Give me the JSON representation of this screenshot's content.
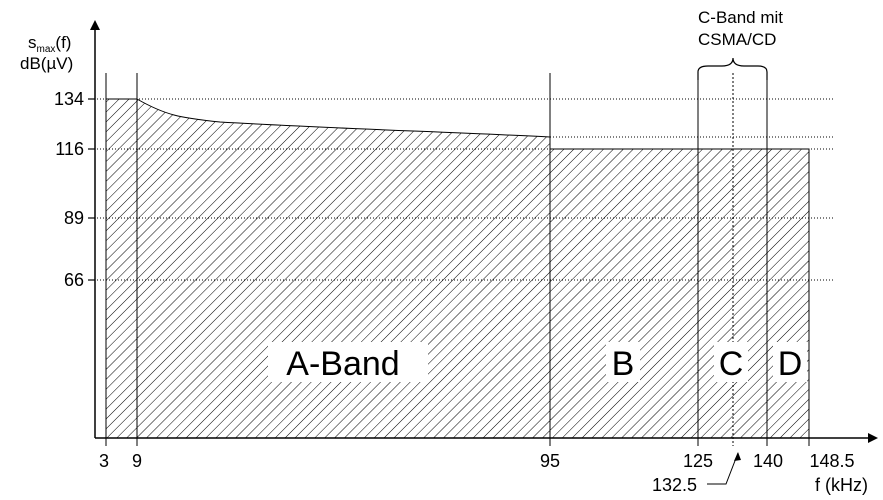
{
  "y_axis": {
    "label_main": "s",
    "label_sub": "max",
    "label_suffix": "(f)",
    "unit": "dB(µV)"
  },
  "x_axis": {
    "label": "f (kHz)"
  },
  "y_ticks": [
    "134",
    "116",
    "89",
    "66"
  ],
  "x_ticks": [
    "3",
    "9",
    "95",
    "125",
    "140",
    "148.5"
  ],
  "x_tick_below": "132.5",
  "bands": [
    {
      "label": "A-Band",
      "from": 9,
      "to": 95
    },
    {
      "label": "B",
      "from": 95,
      "to": 125
    },
    {
      "label": "C",
      "from": 125,
      "to": 140
    },
    {
      "label": "D",
      "from": 140,
      "to": 148.5
    }
  ],
  "c_band_note": {
    "line1": "C-Band mit",
    "line2": "CSMA/CD"
  }
}
